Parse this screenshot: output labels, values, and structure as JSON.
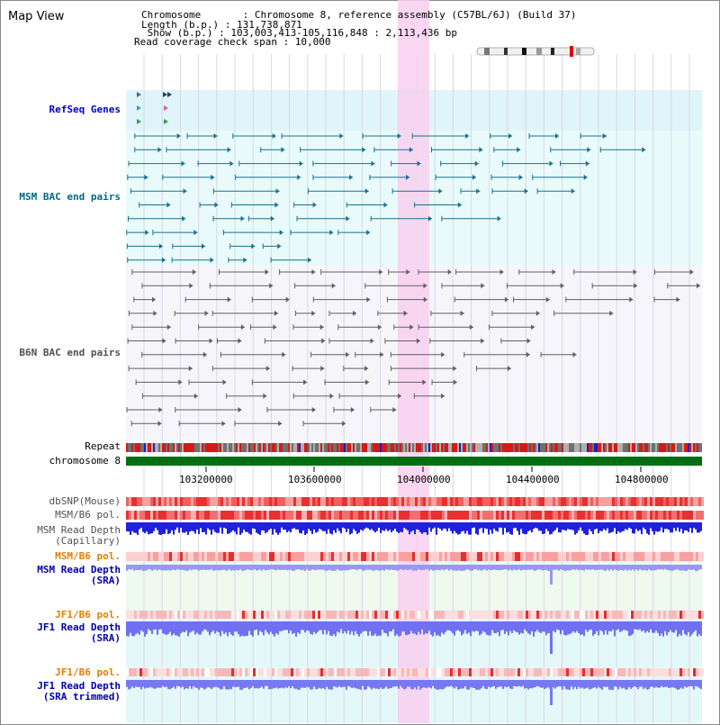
{
  "page": {
    "title": "Map View"
  },
  "info": {
    "chromosome_line": "Chromosome       : Chromosome 8, reference assembly (C57BL/6J) (Build 37)",
    "length_line": "Length (b.p.) : 131,738,871",
    "show_line": " Show (b.p.) : 103,003,413-105,116,848 : 2,113,436 bp",
    "coverage_line": "Read coverage check span : 10,000"
  },
  "tracks": {
    "refseq": {
      "label": "RefSeq Genes",
      "color": "#0000cc"
    },
    "msm_bac": {
      "label": "MSM BAC end pairs",
      "color": "#006b80"
    },
    "b6n_bac": {
      "label": "B6N BAC end pairs",
      "color": "#505050"
    },
    "repeat": {
      "label": "Repeat",
      "color": "#000000"
    },
    "chromosome": {
      "label": "chromosome 8",
      "color": "#000000"
    },
    "dbsnp": {
      "label": "dbSNP(Mouse)",
      "color": "#505050"
    },
    "msm_b6_pol_1": {
      "label": "MSM/B6 pol.",
      "color": "#505050"
    },
    "msm_read_depth_cap": {
      "label": "MSM Read Depth\n(Capillary)",
      "color": "#505050"
    },
    "msm_b6_pol_2": {
      "label": "MSM/B6 pol.",
      "color": "#e08000"
    },
    "msm_read_depth_sra": {
      "label": "MSM Read Depth\n(SRA)",
      "color": "#0000aa"
    },
    "jf1_b6_pol_1": {
      "label": "JF1/B6 pol.",
      "color": "#e08000"
    },
    "jf1_read_depth_sra": {
      "label": "JF1 Read Depth\n(SRA)",
      "color": "#0000aa"
    },
    "jf1_b6_pol_2": {
      "label": "JF1/B6 pol.",
      "color": "#e08000"
    },
    "jf1_read_depth_trimmed": {
      "label": "JF1 Read Depth\n(SRA trimmed)",
      "color": "#0000aa"
    }
  },
  "axis": {
    "ticks": [
      {
        "label": "103200000"
      },
      {
        "label": "103600000"
      },
      {
        "label": "104000000"
      },
      {
        "label": "104400000"
      },
      {
        "label": "104800000"
      }
    ]
  },
  "highlight": {
    "color": "#f8d0f0"
  }
}
